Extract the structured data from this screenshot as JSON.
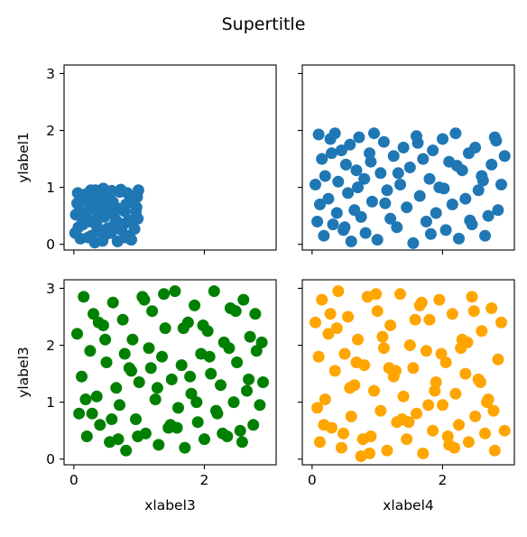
{
  "suptitle": "Supertitle",
  "chart_data": [
    {
      "type": "scatter",
      "panel": "top-left",
      "color": "#1f77b4",
      "xlabel": "",
      "ylabel": "ylabel1",
      "xlim": [
        -0.15,
        3.1
      ],
      "ylim": [
        -0.1,
        3.15
      ],
      "xticks": [
        0,
        2
      ],
      "yticks": [
        0,
        1,
        2,
        3
      ],
      "show_xticklabels": false,
      "show_yticklabels": true,
      "x": [
        0.05,
        0.12,
        0.18,
        0.25,
        0.33,
        0.41,
        0.48,
        0.55,
        0.62,
        0.7,
        0.78,
        0.85,
        0.92,
        0.98,
        0.07,
        0.15,
        0.22,
        0.3,
        0.37,
        0.45,
        0.52,
        0.6,
        0.67,
        0.75,
        0.82,
        0.9,
        0.97,
        0.03,
        0.1,
        0.2,
        0.28,
        0.35,
        0.43,
        0.5,
        0.58,
        0.65,
        0.73,
        0.8,
        0.88,
        0.95,
        0.06,
        0.14,
        0.24,
        0.32,
        0.4,
        0.47,
        0.57,
        0.64,
        0.72,
        0.84,
        0.93,
        0.09,
        0.17,
        0.27,
        0.38,
        0.53,
        0.69,
        0.86,
        0.99,
        0.02,
        0.26,
        0.44,
        0.61,
        0.77,
        0.91,
        0.13,
        0.36,
        0.56,
        0.79,
        0.96
      ],
      "y": [
        0.72,
        0.55,
        0.88,
        0.4,
        0.95,
        0.22,
        0.63,
        0.81,
        0.35,
        0.92,
        0.58,
        0.15,
        0.77,
        0.45,
        0.3,
        0.85,
        0.12,
        0.67,
        0.5,
        0.98,
        0.28,
        0.74,
        0.05,
        0.6,
        0.9,
        0.38,
        0.83,
        0.52,
        0.1,
        0.46,
        0.79,
        0.33,
        0.68,
        0.18,
        0.94,
        0.42,
        0.25,
        0.7,
        0.08,
        0.57,
        0.9,
        0.35,
        0.62,
        0.03,
        0.85,
        0.48,
        0.2,
        0.65,
        0.96,
        0.42,
        0.27,
        0.6,
        0.78,
        0.15,
        0.55,
        0.88,
        0.32,
        0.75,
        0.95,
        0.2,
        0.95,
        0.06,
        0.52,
        0.36,
        0.8,
        0.44,
        0.28,
        0.7,
        0.12,
        0.65
      ],
      "series": [
        {
          "name": ""
        }
      ]
    },
    {
      "type": "scatter",
      "panel": "top-right",
      "color": "#1f77b4",
      "xlabel": "",
      "ylabel": "",
      "xlim": [
        -0.15,
        3.1
      ],
      "ylim": [
        -0.1,
        3.15
      ],
      "xticks": [
        0,
        2
      ],
      "yticks": [
        0,
        1,
        2,
        3
      ],
      "show_xticklabels": false,
      "show_yticklabels": false,
      "x": [
        0.05,
        0.08,
        0.1,
        0.12,
        0.15,
        0.18,
        0.2,
        0.25,
        0.28,
        0.32,
        0.35,
        0.38,
        0.4,
        0.45,
        0.48,
        0.52,
        0.55,
        0.58,
        0.6,
        0.65,
        0.68,
        0.72,
        0.75,
        0.8,
        0.82,
        0.88,
        0.92,
        0.95,
        1.0,
        1.05,
        1.1,
        1.15,
        1.2,
        1.25,
        1.3,
        1.35,
        1.4,
        1.45,
        1.5,
        1.55,
        1.6,
        1.65,
        1.7,
        1.75,
        1.8,
        1.85,
        1.9,
        1.95,
        2.0,
        2.05,
        2.1,
        2.15,
        2.2,
        2.25,
        2.3,
        2.35,
        2.4,
        2.45,
        2.5,
        2.55,
        2.6,
        2.65,
        2.7,
        2.75,
        2.8,
        2.85,
        2.9,
        2.95,
        0.3,
        0.5,
        0.7,
        0.9,
        1.12,
        1.32,
        1.62,
        1.82,
        2.02,
        2.22,
        2.42,
        2.62,
        2.82
      ],
      "y": [
        1.05,
        0.4,
        1.93,
        0.7,
        1.5,
        0.15,
        1.2,
        0.8,
        1.85,
        0.35,
        1.95,
        0.55,
        1.1,
        1.65,
        0.25,
        1.4,
        0.9,
        1.75,
        0.05,
        0.6,
        1.3,
        1.88,
        0.48,
        1.15,
        0.2,
        1.6,
        0.75,
        1.95,
        0.08,
        1.25,
        1.8,
        0.95,
        0.45,
        1.55,
        0.3,
        1.05,
        1.7,
        0.65,
        1.35,
        0.02,
        1.9,
        0.85,
        1.5,
        0.4,
        1.15,
        1.65,
        0.55,
        1.0,
        1.85,
        0.25,
        1.45,
        0.7,
        1.95,
        0.1,
        1.3,
        0.8,
        1.6,
        0.35,
        1.7,
        0.95,
        1.2,
        0.15,
        0.5,
        1.4,
        1.88,
        0.6,
        1.05,
        1.55,
        1.6,
        0.3,
        1.0,
        1.45,
        0.72,
        1.25,
        1.78,
        0.18,
        0.98,
        1.38,
        0.42,
        1.12,
        1.82
      ],
      "series": [
        {
          "name": ""
        }
      ]
    },
    {
      "type": "scatter",
      "panel": "bottom-left",
      "color": "#008000",
      "xlabel": "xlabel3",
      "ylabel": "ylabel3",
      "xlim": [
        -0.15,
        3.1
      ],
      "ylim": [
        -0.1,
        3.15
      ],
      "xticks": [
        0,
        2
      ],
      "yticks": [
        0,
        1,
        2,
        3
      ],
      "show_xticklabels": true,
      "show_yticklabels": true,
      "x": [
        0.05,
        0.08,
        0.12,
        0.15,
        0.2,
        0.25,
        0.3,
        0.35,
        0.4,
        0.45,
        0.5,
        0.55,
        0.6,
        0.65,
        0.7,
        0.75,
        0.8,
        0.85,
        0.9,
        0.95,
        1.0,
        1.05,
        1.1,
        1.15,
        1.2,
        1.25,
        1.3,
        1.35,
        1.4,
        1.45,
        1.5,
        1.55,
        1.6,
        1.65,
        1.7,
        1.75,
        1.8,
        1.85,
        1.9,
        1.95,
        2.0,
        2.05,
        2.1,
        2.15,
        2.2,
        2.25,
        2.3,
        2.35,
        2.4,
        2.45,
        2.5,
        2.55,
        2.6,
        2.65,
        2.7,
        2.75,
        2.8,
        2.85,
        2.9,
        0.18,
        0.38,
        0.58,
        0.78,
        0.98,
        1.18,
        1.38,
        1.58,
        1.78,
        1.98,
        2.18,
        2.38,
        2.58,
        2.78,
        0.28,
        0.48,
        0.68,
        0.88,
        1.08,
        1.28,
        1.48,
        1.68,
        1.88,
        2.08,
        2.28,
        2.48,
        2.68,
        2.88
      ],
      "y": [
        2.2,
        0.8,
        1.45,
        2.85,
        0.4,
        1.9,
        2.55,
        1.1,
        0.6,
        2.35,
        1.7,
        0.3,
        2.75,
        1.25,
        0.95,
        2.45,
        0.15,
        1.6,
        2.1,
        0.7,
        1.35,
        2.85,
        0.45,
        1.95,
        2.6,
        1.05,
        0.25,
        1.8,
        2.3,
        0.55,
        1.4,
        2.95,
        0.9,
        1.65,
        0.2,
        2.4,
        1.15,
        2.7,
        0.65,
        1.85,
        0.35,
        2.25,
        1.5,
        2.95,
        0.8,
        1.3,
        2.05,
        0.4,
        2.65,
        1.0,
        1.7,
        0.5,
        2.8,
        1.2,
        2.15,
        0.6,
        1.9,
        0.95,
        1.35,
        1.05,
        2.4,
        0.7,
        1.85,
        0.4,
        1.6,
        2.9,
        0.55,
        1.45,
        2.35,
        0.85,
        1.95,
        0.3,
        2.55,
        0.8,
        2.1,
        0.35,
        1.55,
        2.8,
        1.25,
        0.6,
        2.3,
        1.0,
        1.8,
        0.45,
        2.6,
        1.4,
        2.05
      ],
      "series": [
        {
          "name": ""
        }
      ]
    },
    {
      "type": "scatter",
      "panel": "bottom-right",
      "color": "#ffa500",
      "xlabel": "xlabel4",
      "ylabel": "",
      "xlim": [
        -0.15,
        3.1
      ],
      "ylim": [
        -0.1,
        3.15
      ],
      "xticks": [
        0,
        2
      ],
      "yticks": [
        0,
        1,
        2,
        3
      ],
      "show_xticklabels": true,
      "show_yticklabels": false,
      "x": [
        0.05,
        0.08,
        0.1,
        0.12,
        0.15,
        0.2,
        0.25,
        0.3,
        0.35,
        0.4,
        0.45,
        0.5,
        0.55,
        0.6,
        0.65,
        0.7,
        0.75,
        0.8,
        0.85,
        0.9,
        0.95,
        1.0,
        1.05,
        1.1,
        1.15,
        1.2,
        1.25,
        1.3,
        1.35,
        1.4,
        1.45,
        1.5,
        1.55,
        1.6,
        1.65,
        1.7,
        1.75,
        1.8,
        1.85,
        1.9,
        1.95,
        2.0,
        2.05,
        2.1,
        2.15,
        2.2,
        2.25,
        2.3,
        2.35,
        2.4,
        2.45,
        2.5,
        2.55,
        2.6,
        2.65,
        2.7,
        2.75,
        2.8,
        2.85,
        2.9,
        2.95,
        0.18,
        0.38,
        0.58,
        0.78,
        0.98,
        1.18,
        1.38,
        1.58,
        1.78,
        1.98,
        2.18,
        2.38,
        2.58,
        2.78,
        0.28,
        0.48,
        0.68,
        0.88,
        1.08,
        1.28,
        1.48,
        1.68,
        1.88,
        2.08,
        2.28,
        2.48,
        2.68
      ],
      "y": [
        2.4,
        0.9,
        1.8,
        0.3,
        2.8,
        1.05,
        2.2,
        0.55,
        1.55,
        2.95,
        0.2,
        1.85,
        2.5,
        0.75,
        1.3,
        2.1,
        0.05,
        1.65,
        2.85,
        0.4,
        1.2,
        2.6,
        0.85,
        1.95,
        0.15,
        2.35,
        1.45,
        0.65,
        2.9,
        1.1,
        0.35,
        2.0,
        1.6,
        0.8,
        2.7,
        0.1,
        1.9,
        2.45,
        0.5,
        1.35,
        2.8,
        0.95,
        1.7,
        0.25,
        2.55,
        1.15,
        0.6,
        2.1,
        1.5,
        0.3,
        2.85,
        0.75,
        1.4,
        2.25,
        0.45,
        1.05,
        2.65,
        0.15,
        1.75,
        2.4,
        0.5,
        0.6,
        2.3,
        1.25,
        0.35,
        2.9,
        1.6,
        0.7,
        2.45,
        0.95,
        1.85,
        0.2,
        2.05,
        1.35,
        0.85,
        2.55,
        0.45,
        1.7,
        0.1,
        2.15,
        1.55,
        0.65,
        2.75,
        1.2,
        0.4,
        1.95,
        2.6,
        1.0
      ],
      "series": [
        {
          "name": ""
        }
      ]
    }
  ]
}
